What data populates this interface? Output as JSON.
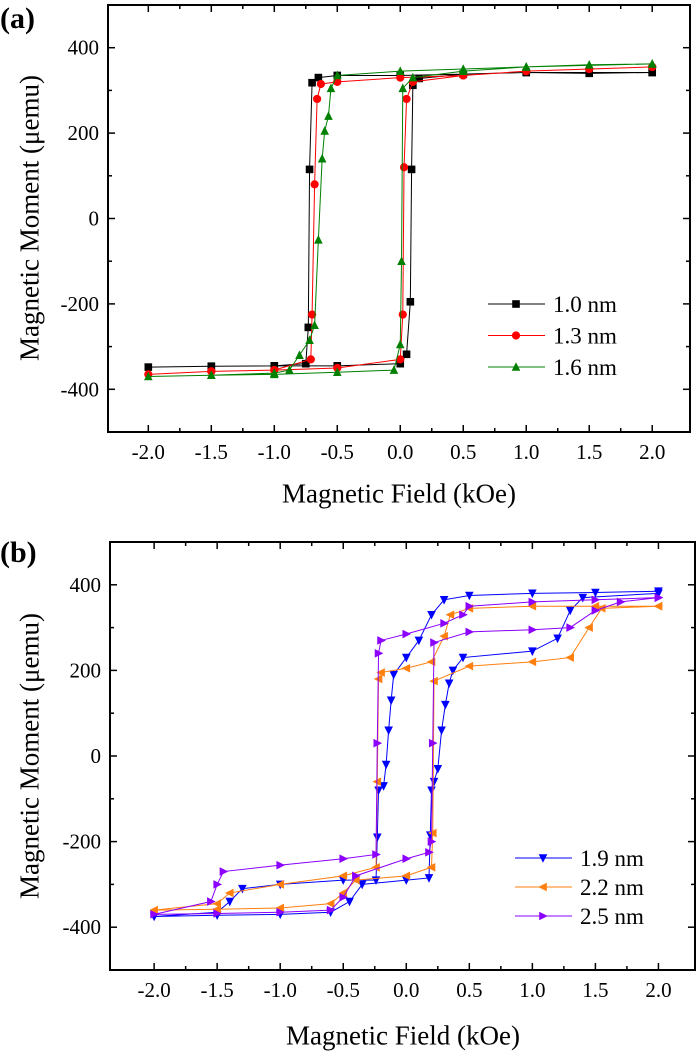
{
  "chart_data": [
    {
      "panel_label": "(a)",
      "type": "line",
      "xlabel": "Magnetic Field (kOe)",
      "ylabel": "Magnetic Moment (μemu)",
      "xlim": [
        -2.32,
        2.3
      ],
      "ylim": [
        -500,
        500
      ],
      "xticks": [
        -2.0,
        -1.5,
        -1.0,
        -0.5,
        0.0,
        0.5,
        1.0,
        1.5,
        2.0
      ],
      "xtick_labels": [
        "-2.0",
        "-1.5",
        "-1.0",
        "-0.5",
        "0.0",
        "0.5",
        "1.0",
        "1.5",
        "2.0"
      ],
      "yticks": [
        -400,
        -200,
        0,
        200,
        400
      ],
      "ytick_labels": [
        "-400",
        "-200",
        "0",
        "200",
        "400"
      ],
      "grid": false,
      "legend_position": "bottom-right",
      "series": [
        {
          "name": "1.0 nm",
          "color": "#000000",
          "marker": "square",
          "points": [
            [
              2,
              342
            ],
            [
              1.5,
              340
            ],
            [
              1,
              342
            ],
            [
              0.5,
              338
            ],
            [
              0.15,
              328
            ],
            [
              0.1,
              312
            ],
            [
              0.09,
              115
            ],
            [
              0.08,
              -195
            ],
            [
              0.05,
              -318
            ],
            [
              0,
              -340
            ],
            [
              -0.5,
              -345
            ],
            [
              -1,
              -345
            ],
            [
              -1.5,
              -346
            ],
            [
              -2,
              -348
            ],
            [
              -1.5,
              -346
            ],
            [
              -1,
              -345
            ],
            [
              -0.75,
              -340
            ],
            [
              -0.73,
              -255
            ],
            [
              -0.72,
              115
            ],
            [
              -0.7,
              318
            ],
            [
              -0.65,
              330
            ],
            [
              -0.5,
              335
            ],
            [
              0,
              335
            ],
            [
              0.5,
              338
            ],
            [
              1,
              342
            ],
            [
              2,
              342
            ]
          ]
        },
        {
          "name": "1.3 nm",
          "color": "#ff0000",
          "marker": "circle",
          "points": [
            [
              2,
              355
            ],
            [
              1.5,
              350
            ],
            [
              1,
              345
            ],
            [
              0.5,
              335
            ],
            [
              0.1,
              320
            ],
            [
              0.05,
              280
            ],
            [
              0.03,
              120
            ],
            [
              0.02,
              -225
            ],
            [
              0,
              -330
            ],
            [
              -0.5,
              -350
            ],
            [
              -1,
              -355
            ],
            [
              -1.5,
              -358
            ],
            [
              -2,
              -365
            ],
            [
              -1.5,
              -358
            ],
            [
              -1,
              -355
            ],
            [
              -0.71,
              -330
            ],
            [
              -0.7,
              -225
            ],
            [
              -0.68,
              80
            ],
            [
              -0.66,
              280
            ],
            [
              -0.63,
              315
            ],
            [
              -0.5,
              320
            ],
            [
              0,
              330
            ],
            [
              0.5,
              335
            ],
            [
              1,
              345
            ],
            [
              2,
              355
            ]
          ]
        },
        {
          "name": "1.6 nm",
          "color": "#008000",
          "marker": "triangle-up",
          "points": [
            [
              2,
              362
            ],
            [
              1.5,
              360
            ],
            [
              1,
              355
            ],
            [
              0.5,
              345
            ],
            [
              0.1,
              330
            ],
            [
              0.02,
              305
            ],
            [
              0.01,
              -100
            ],
            [
              0,
              -295
            ],
            [
              -0.05,
              -355
            ],
            [
              -0.5,
              -360
            ],
            [
              -1,
              -365
            ],
            [
              -1.5,
              -367
            ],
            [
              -2,
              -370
            ],
            [
              -1.5,
              -367
            ],
            [
              -1,
              -362
            ],
            [
              -0.88,
              -355
            ],
            [
              -0.8,
              -320
            ],
            [
              -0.72,
              -285
            ],
            [
              -0.68,
              -250
            ],
            [
              -0.65,
              -50
            ],
            [
              -0.62,
              140
            ],
            [
              -0.6,
              205
            ],
            [
              -0.57,
              240
            ],
            [
              -0.55,
              305
            ],
            [
              -0.5,
              335
            ],
            [
              0,
              345
            ],
            [
              0.5,
              350
            ],
            [
              1,
              355
            ],
            [
              2,
              362
            ]
          ]
        }
      ]
    },
    {
      "panel_label": "(b)",
      "type": "line",
      "xlabel": "Magnetic Field (kOe)",
      "ylabel": "Magnetic Moment (μemu)",
      "xlim": [
        -2.35,
        2.29
      ],
      "ylim": [
        -500,
        500
      ],
      "xticks": [
        -2.0,
        -1.5,
        -1.0,
        -0.5,
        0.0,
        0.5,
        1.0,
        1.5,
        2.0
      ],
      "xtick_labels": [
        "-2.0",
        "-1.5",
        "-1.0",
        "-0.5",
        "0.0",
        "0.5",
        "1.0",
        "1.5",
        "2.0"
      ],
      "yticks": [
        -400,
        -200,
        0,
        200,
        400
      ],
      "ytick_labels": [
        "-400",
        "-200",
        "0",
        "200",
        "400"
      ],
      "grid": false,
      "legend_position": "bottom-right",
      "series": [
        {
          "name": "1.9 nm",
          "color": "#0000ff",
          "marker": "triangle-down",
          "points": [
            [
              2,
              385
            ],
            [
              1.5,
              382
            ],
            [
              1,
              380
            ],
            [
              0.5,
              375
            ],
            [
              0.3,
              365
            ],
            [
              0.2,
              330
            ],
            [
              0.1,
              270
            ],
            [
              0,
              230
            ],
            [
              -0.1,
              190
            ],
            [
              -0.12,
              130
            ],
            [
              -0.14,
              60
            ],
            [
              -0.16,
              -20
            ],
            [
              -0.18,
              -70
            ],
            [
              -0.22,
              -80
            ],
            [
              -0.23,
              -190
            ],
            [
              -0.24,
              -290
            ],
            [
              -0.5,
              -290
            ],
            [
              -1,
              -300
            ],
            [
              -1.3,
              -310
            ],
            [
              -1.4,
              -340
            ],
            [
              -1.5,
              -365
            ],
            [
              -2,
              -375
            ],
            [
              -1.5,
              -372
            ],
            [
              -1,
              -370
            ],
            [
              -0.6,
              -365
            ],
            [
              -0.45,
              -340
            ],
            [
              -0.35,
              -300
            ],
            [
              0,
              -290
            ],
            [
              0.18,
              -285
            ],
            [
              0.19,
              -185
            ],
            [
              0.2,
              -80
            ],
            [
              0.22,
              -60
            ],
            [
              0.25,
              -30
            ],
            [
              0.28,
              60
            ],
            [
              0.31,
              120
            ],
            [
              0.34,
              170
            ],
            [
              0.37,
              200
            ],
            [
              0.45,
              230
            ],
            [
              1,
              245
            ],
            [
              1.2,
              275
            ],
            [
              1.3,
              340
            ],
            [
              1.4,
              370
            ],
            [
              2,
              380
            ]
          ]
        },
        {
          "name": "2.2 nm",
          "color": "#ff7f0e",
          "marker": "triangle-left",
          "points": [
            [
              2,
              350
            ],
            [
              1.5,
              350
            ],
            [
              1,
              350
            ],
            [
              0.5,
              345
            ],
            [
              0.35,
              330
            ],
            [
              0.3,
              280
            ],
            [
              0.2,
              220
            ],
            [
              0,
              205
            ],
            [
              -0.2,
              195
            ],
            [
              -0.22,
              180
            ],
            [
              -0.23,
              -60
            ],
            [
              -0.24,
              -260
            ],
            [
              -0.5,
              -280
            ],
            [
              -1,
              -300
            ],
            [
              -1.4,
              -320
            ],
            [
              -1.5,
              -345
            ],
            [
              -2,
              -360
            ],
            [
              -1.5,
              -358
            ],
            [
              -1,
              -355
            ],
            [
              -0.6,
              -345
            ],
            [
              -0.5,
              -320
            ],
            [
              -0.4,
              -290
            ],
            [
              0,
              -280
            ],
            [
              0.2,
              -260
            ],
            [
              0.21,
              -180
            ],
            [
              0.22,
              175
            ],
            [
              0.5,
              210
            ],
            [
              1,
              220
            ],
            [
              1.3,
              230
            ],
            [
              1.45,
              300
            ],
            [
              1.55,
              345
            ],
            [
              2,
              350
            ]
          ]
        },
        {
          "name": "2.5 nm",
          "color": "#8b00ff",
          "marker": "triangle-right",
          "points": [
            [
              2,
              370
            ],
            [
              1.5,
              365
            ],
            [
              1,
              360
            ],
            [
              0.5,
              350
            ],
            [
              0.45,
              330
            ],
            [
              0.3,
              310
            ],
            [
              0,
              285
            ],
            [
              -0.2,
              270
            ],
            [
              -0.22,
              240
            ],
            [
              -0.23,
              30
            ],
            [
              -0.24,
              -230
            ],
            [
              -0.5,
              -240
            ],
            [
              -1,
              -255
            ],
            [
              -1.45,
              -270
            ],
            [
              -1.5,
              -300
            ],
            [
              -1.55,
              -340
            ],
            [
              -2,
              -370
            ],
            [
              -1.5,
              -368
            ],
            [
              -1,
              -365
            ],
            [
              -0.6,
              -360
            ],
            [
              -0.5,
              -330
            ],
            [
              -0.4,
              -280
            ],
            [
              0,
              -240
            ],
            [
              0.18,
              -225
            ],
            [
              0.2,
              -200
            ],
            [
              0.21,
              30
            ],
            [
              0.22,
              265
            ],
            [
              0.5,
              290
            ],
            [
              1,
              295
            ],
            [
              1.3,
              300
            ],
            [
              1.5,
              340
            ],
            [
              1.7,
              360
            ],
            [
              2,
              370
            ]
          ]
        }
      ]
    }
  ]
}
